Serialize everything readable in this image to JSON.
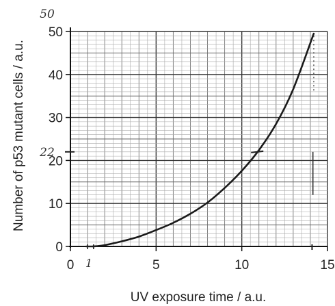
{
  "chart_data": {
    "type": "line",
    "xlabel": "UV exposure time / a.u.",
    "ylabel": "Number of p53 mutant cells / a.u.",
    "xlim": [
      0,
      15
    ],
    "ylim": [
      0,
      50
    ],
    "x_ticks": [
      "0",
      "5",
      "10",
      "15"
    ],
    "y_ticks": [
      "0",
      "10",
      "20",
      "30",
      "40",
      "50"
    ],
    "grid": true,
    "series": [
      {
        "x": [
          1.3,
          1.5,
          2,
          3,
          4,
          5,
          6,
          7,
          8,
          9,
          10,
          11,
          12,
          13,
          14.2
        ],
        "y": [
          0,
          0.05,
          0.3,
          1.2,
          2.3,
          3.8,
          5.5,
          7.6,
          10.2,
          13.6,
          17.6,
          22.4,
          28.5,
          36.6,
          49.5
        ]
      }
    ],
    "annotations": [
      {
        "text": "50",
        "x": -0.1,
        "y": 50,
        "kind": "handwritten"
      },
      {
        "text": "22",
        "x": -0.1,
        "y": 22,
        "kind": "handwritten"
      },
      {
        "text": "1",
        "x": 1.0,
        "y": 0,
        "kind": "handwritten"
      }
    ]
  }
}
